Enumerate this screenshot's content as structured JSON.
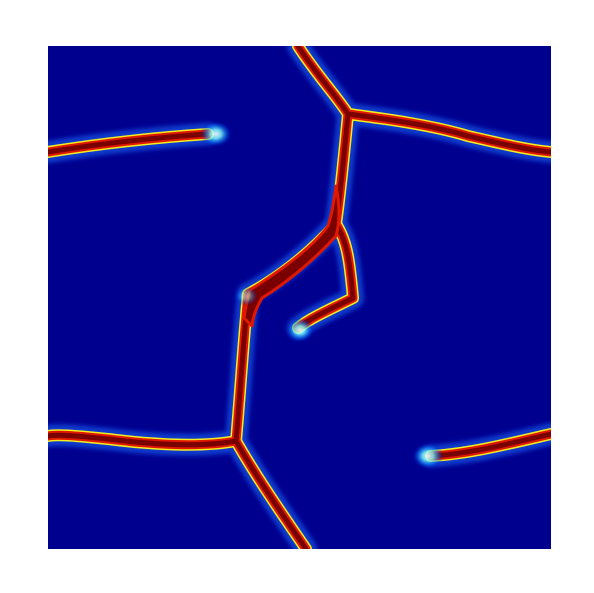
{
  "figure": {
    "colormap": {
      "name": "jet",
      "low": "#00008f",
      "mid_low": "#0080ff",
      "mid": "#7fff7f",
      "mid_high": "#ffff00",
      "high": "#800000"
    },
    "background_color": "#ffffff",
    "field_base_color": "#00008f"
  }
}
